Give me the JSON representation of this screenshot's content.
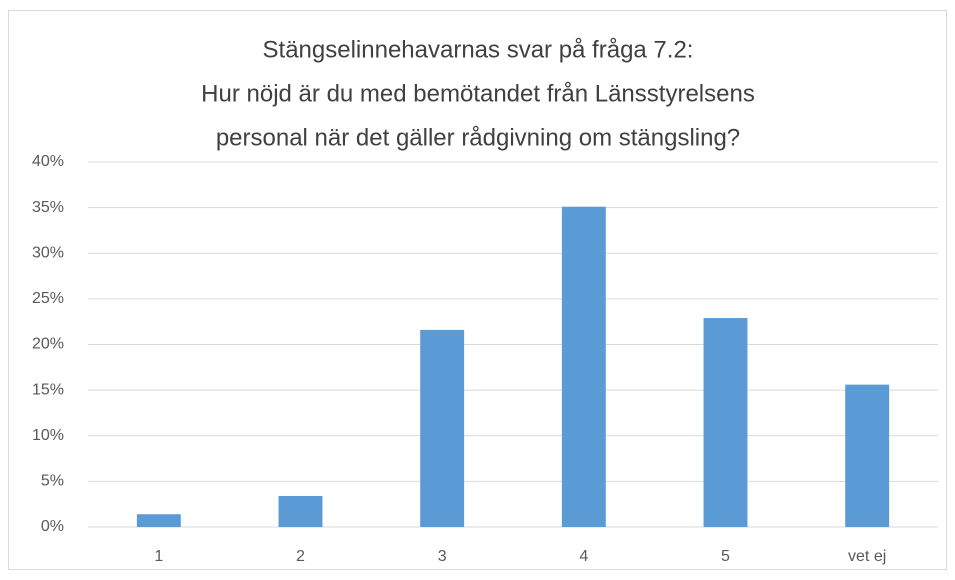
{
  "chart_data": {
    "type": "bar",
    "title": [
      "Stängselinnehavarnas svar på fråga 7.2:",
      "Hur nöjd är du med bemötandet från Länsstyrelsens",
      "personal när det gäller rådgivning om stängsling?"
    ],
    "categories": [
      "1",
      "2",
      "3",
      "4",
      "5",
      "vet ej"
    ],
    "values": [
      1.4,
      3.4,
      21.6,
      35.1,
      22.9,
      15.6
    ],
    "color": "#5b9bd5",
    "ylim": [
      0,
      40
    ],
    "yticks": [
      {
        "value": 0,
        "label": "0%"
      },
      {
        "value": 5,
        "label": "5%"
      },
      {
        "value": 10,
        "label": "10%"
      },
      {
        "value": 15,
        "label": "15%"
      },
      {
        "value": 20,
        "label": "20%"
      },
      {
        "value": 25,
        "label": "25%"
      },
      {
        "value": 30,
        "label": "30%"
      },
      {
        "value": 35,
        "label": "35%"
      },
      {
        "value": 40,
        "label": "40%"
      }
    ],
    "grid": true
  }
}
